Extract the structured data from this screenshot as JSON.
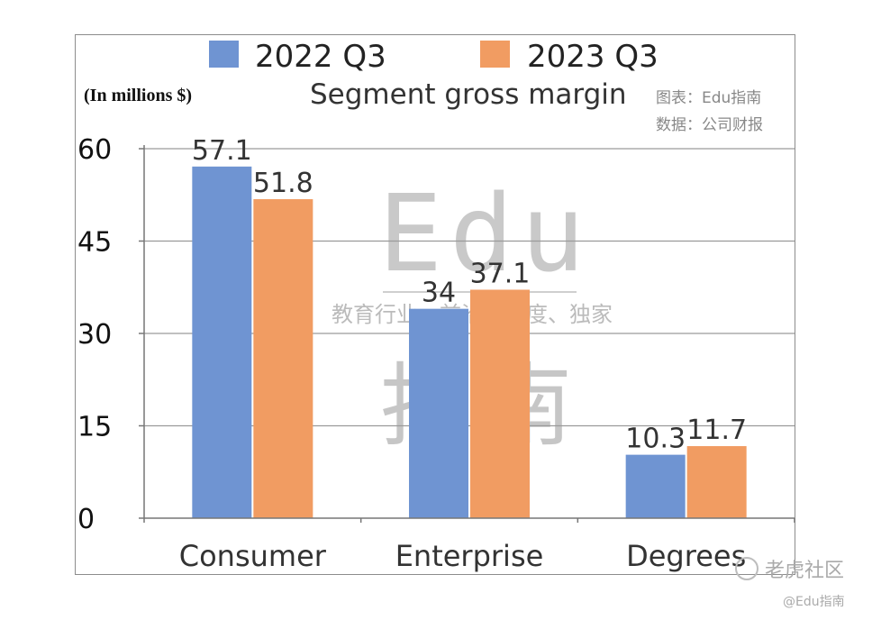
{
  "chart_data": {
    "type": "bar",
    "title": "Segment gross margin",
    "unit_label": "(In millions $)",
    "source_lines": [
      "图表：Edu指南",
      "数据：公司财报"
    ],
    "categories": [
      "Consumer",
      "Enterprise",
      "Degrees"
    ],
    "series": [
      {
        "name": "2022 Q3",
        "color": "#6f94d2",
        "values": [
          57.1,
          34,
          10.3
        ],
        "labels": [
          "57.1",
          "34",
          "10.3"
        ]
      },
      {
        "name": "2023 Q3",
        "color": "#f19c62",
        "values": [
          51.8,
          37.1,
          11.7
        ],
        "labels": [
          "51.8",
          "37.1",
          "11.7"
        ]
      }
    ],
    "yticks": [
      "0",
      "15",
      "30",
      "45",
      "60"
    ],
    "ylim": [
      0,
      60
    ],
    "grid": true,
    "legend": "top"
  },
  "watermark": {
    "brand": "Edu",
    "tagline": "教育行业，前沿、深度、独家",
    "big_chars": [
      "指",
      "南"
    ],
    "corner_logo": "老虎社区",
    "corner_handle": "@Edu指南"
  }
}
